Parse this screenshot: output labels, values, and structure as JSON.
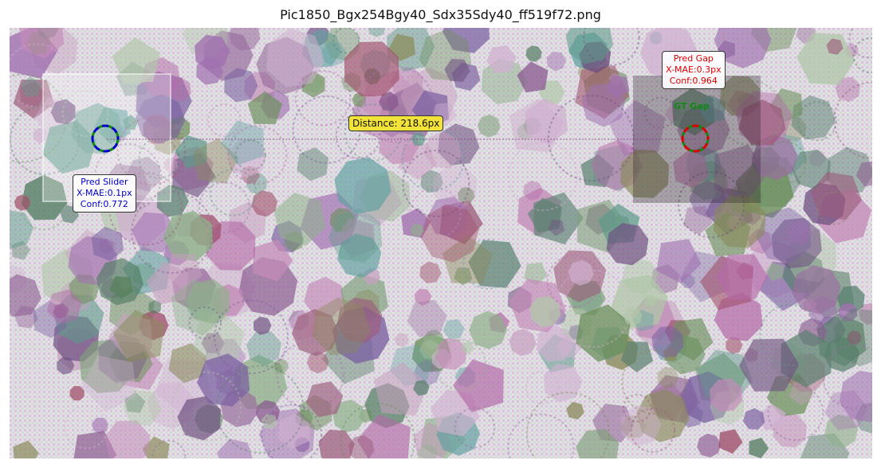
{
  "title": "Pic1850_Bgx254Bgy40_Sdx35Sdy40_ff519f72.png",
  "annotations": {
    "pred_slider": {
      "title": "Pred Slider",
      "mae": "X-MAE:0.1px",
      "conf": "Conf:0.772",
      "color": "#0000cc"
    },
    "pred_gap": {
      "title": "Pred Gap",
      "mae": "X-MAE:0.3px",
      "conf": "Conf:0.964",
      "color": "#dd0000"
    },
    "gt_gap": {
      "label": "GT Gap",
      "color": "#118811"
    },
    "distance": {
      "label": "Distance: 218.6px",
      "color": "#f2e33a"
    }
  },
  "icons": {
    "slider_marker": "dashed-circle-icon",
    "gap_marker": "dashed-circle-icon"
  }
}
